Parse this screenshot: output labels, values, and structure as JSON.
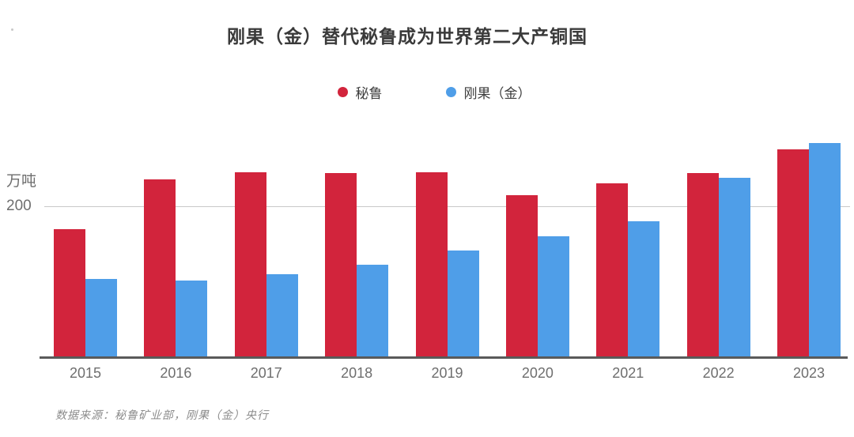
{
  "title": "刚果（金）替代秘鲁成为世界第二大产铜国",
  "unit_label": "万吨",
  "axis_tick_200": "200",
  "source_note": "数据来源：秘鲁矿业部，刚果（金）央行",
  "colors": {
    "peru_red": "#D2243C",
    "congo_blue": "#4F9EE8",
    "gridline": "#c9c9c9",
    "axis_line": "#5a5a5a"
  },
  "legend": [
    {
      "key": "peru",
      "label": "秘鲁",
      "color": "#D2243C"
    },
    {
      "key": "congo",
      "label": "刚果（金）",
      "color": "#4F9EE8"
    }
  ],
  "chart_data": {
    "type": "bar",
    "title": "刚果（金）替代秘鲁成为世界第二大产铜国",
    "xlabel": "",
    "ylabel": "万吨",
    "ylim": [
      0,
      306
    ],
    "gridlines": [
      200
    ],
    "grid": "single-horizontal-line",
    "legend_position": "top-center",
    "categories": [
      "2015",
      "2016",
      "2017",
      "2018",
      "2019",
      "2020",
      "2021",
      "2022",
      "2023"
    ],
    "series": [
      {
        "name": "秘鲁",
        "key": "peru",
        "color": "#D2243C",
        "values": [
          170,
          235,
          245,
          244,
          245,
          215,
          230,
          244,
          275
        ]
      },
      {
        "name": "刚果（金）",
        "key": "congo",
        "color": "#4F9EE8",
        "values": [
          104,
          102,
          110,
          123,
          142,
          160,
          180,
          237,
          283
        ]
      }
    ]
  }
}
